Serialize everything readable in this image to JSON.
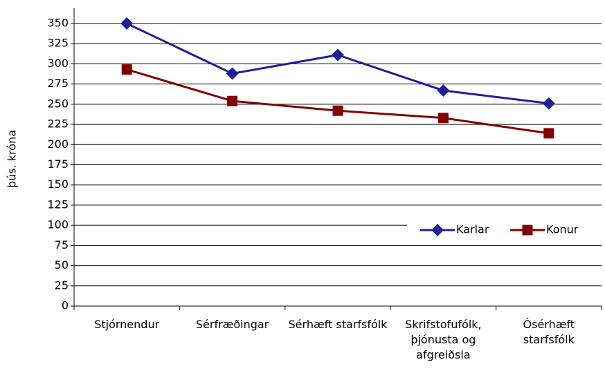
{
  "chart_data": {
    "type": "line",
    "y_label": "þús. króna",
    "categories": [
      "Stjórnendur",
      "Sérfræðingar",
      "Sérhæft starfsfólk",
      "Skrifstofufólk, þjónusta og afgreiðsla",
      "Ósérhæft starfsfólk"
    ],
    "series": [
      {
        "name": "Karlar",
        "color": "#1f1f99",
        "marker": "diamond",
        "values": [
          350,
          288,
          311,
          267,
          251
        ]
      },
      {
        "name": "Konur",
        "color": "#800000",
        "marker": "square",
        "values": [
          293,
          254,
          242,
          233,
          214
        ]
      }
    ],
    "ylim": [
      0,
      350
    ],
    "yticks": [
      0,
      25,
      50,
      75,
      100,
      125,
      150,
      175,
      200,
      225,
      250,
      275,
      300,
      325,
      350
    ],
    "grid": true,
    "legend": "right"
  }
}
